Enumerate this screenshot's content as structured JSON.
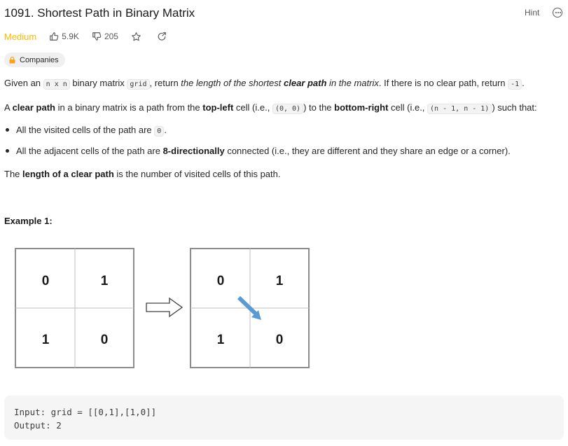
{
  "problem": {
    "title": "1091. Shortest Path in Binary Matrix",
    "hint_label": "Hint",
    "difficulty": "Medium",
    "likes": "5.9K",
    "dislikes": "205",
    "companies_label": "Companies"
  },
  "description": {
    "p1_a": "Given an ",
    "p1_code1": "n x n",
    "p1_b": " binary matrix ",
    "p1_code2": "grid",
    "p1_c": ", return ",
    "p1_em1": "the length of the shortest ",
    "p1_em_bold": "clear path",
    "p1_em2": " in the matrix",
    "p1_d": ". If there is no clear path, return ",
    "p1_code3": "-1",
    "p1_e": ".",
    "p2_a": "A ",
    "p2_b1": "clear path",
    "p2_b": " in a binary matrix is a path from the ",
    "p2_b2": "top-left",
    "p2_c": " cell (i.e., ",
    "p2_code1": "(0, 0)",
    "p2_d": ") to the ",
    "p2_b3": "bottom-right",
    "p2_e": " cell (i.e., ",
    "p2_code2": "(n - 1, n - 1)",
    "p2_f": ") such that:",
    "li1_a": "All the visited cells of the path are ",
    "li1_code": "0",
    "li1_b": ".",
    "li2_a": "All the adjacent cells of the path are ",
    "li2_bold": "8-directionally",
    "li2_b": " connected (i.e., they are different and they share an edge or a corner).",
    "p3_a": "The ",
    "p3_bold": "length of a clear path",
    "p3_b": " is the number of visited cells of this path."
  },
  "example": {
    "heading": "Example 1:",
    "grid_left": [
      "0",
      "1",
      "1",
      "0"
    ],
    "grid_right": [
      "0",
      "1",
      "1",
      "0"
    ],
    "input_line": "Input: grid = [[0,1],[1,0]]",
    "output_line": "Output: 2"
  },
  "colors": {
    "difficulty": "#ffb800",
    "path_arrow": "#5b9bd5"
  }
}
